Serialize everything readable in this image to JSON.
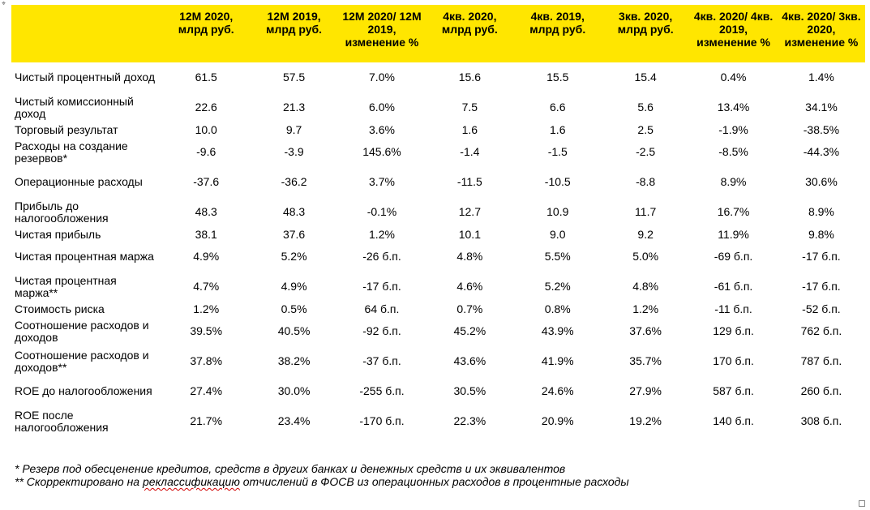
{
  "table": {
    "headers": [
      "",
      "12M 2020, млрд руб.",
      "12M 2019, млрд руб.",
      "12M 2020/ 12M 2019, изменение %",
      "4кв. 2020, млрд руб.",
      "4кв. 2019, млрд руб.",
      "3кв. 2020, млрд руб.",
      "4кв. 2020/ 4кв. 2019, изменение %",
      "4кв. 2020/ 3кв. 2020, изменение %"
    ],
    "rows": [
      {
        "label": "Чистый процентный доход",
        "values": [
          "61.5",
          "57.5",
          "7.0%",
          "15.6",
          "15.5",
          "15.4",
          "0.4%",
          "1.4%"
        ]
      },
      {
        "label": "Чистый комиссионный доход",
        "values": [
          "22.6",
          "21.3",
          "6.0%",
          "7.5",
          "6.6",
          "5.6",
          "13.4%",
          "34.1%"
        ]
      },
      {
        "label": "Торговый результат",
        "values": [
          "10.0",
          "9.7",
          "3.6%",
          "1.6",
          "1.6",
          "2.5",
          "-1.9%",
          "-38.5%"
        ]
      },
      {
        "label": "Расходы на создание резервов*",
        "values": [
          "-9.6",
          "-3.9",
          "145.6%",
          "-1.4",
          "-1.5",
          "-2.5",
          "-8.5%",
          "-44.3%"
        ]
      },
      {
        "label": "Операционные расходы",
        "values": [
          "-37.6",
          "-36.2",
          "3.7%",
          "-11.5",
          "-10.5",
          "-8.8",
          "8.9%",
          "30.6%"
        ]
      },
      {
        "label": "Прибыль до налогообложения",
        "values": [
          "48.3",
          "48.3",
          "-0.1%",
          "12.7",
          "10.9",
          "11.7",
          "16.7%",
          "8.9%"
        ]
      },
      {
        "label": "Чистая прибыль",
        "values": [
          "38.1",
          "37.6",
          "1.2%",
          "10.1",
          "9.0",
          "9.2",
          "11.9%",
          "9.8%"
        ]
      },
      {
        "label": "Чистая процентная маржа",
        "values": [
          "4.9%",
          "5.2%",
          "-26 б.п.",
          "4.8%",
          "5.5%",
          "5.0%",
          "-69 б.п.",
          "-17 б.п."
        ]
      },
      {
        "label": "Чистая процентная маржа**",
        "values": [
          "4.7%",
          "4.9%",
          "-17 б.п.",
          "4.6%",
          "5.2%",
          "4.8%",
          "-61 б.п.",
          "-17 б.п."
        ]
      },
      {
        "label": "Стоимость риска",
        "values": [
          "1.2%",
          "0.5%",
          "64 б.п.",
          "0.7%",
          "0.8%",
          "1.2%",
          "-11 б.п.",
          "-52 б.п."
        ]
      },
      {
        "label": "Соотношение расходов и доходов",
        "values": [
          "39.5%",
          "40.5%",
          "-92 б.п.",
          "45.2%",
          "43.9%",
          "37.6%",
          "129 б.п.",
          "762 б.п."
        ]
      },
      {
        "label": "Соотношение расходов и доходов**",
        "values": [
          "37.8%",
          "38.2%",
          "-37 б.п.",
          "43.6%",
          "41.9%",
          "35.7%",
          "170 б.п.",
          "787 б.п."
        ]
      },
      {
        "label": "ROE до налогообложения",
        "values": [
          "27.4%",
          "30.0%",
          "-255 б.п.",
          "30.5%",
          "24.6%",
          "27.9%",
          "587 б.п.",
          "260 б.п."
        ]
      },
      {
        "label": "ROE после налогообложения",
        "values": [
          "21.7%",
          "23.4%",
          "-170 б.п.",
          "22.3%",
          "20.9%",
          "19.2%",
          "140 б.п.",
          "308 б.п."
        ]
      }
    ]
  },
  "notes": {
    "note1": "* Резерв под обесценение кредитов, средств в других банках и денежных средств и их эквивалентов",
    "note2_before": "** Скорректировано на ",
    "note2_flagged": "реклассификацию",
    "note2_after": " отчислений в ФОСВ из операционных расходов в процентные расходы"
  }
}
